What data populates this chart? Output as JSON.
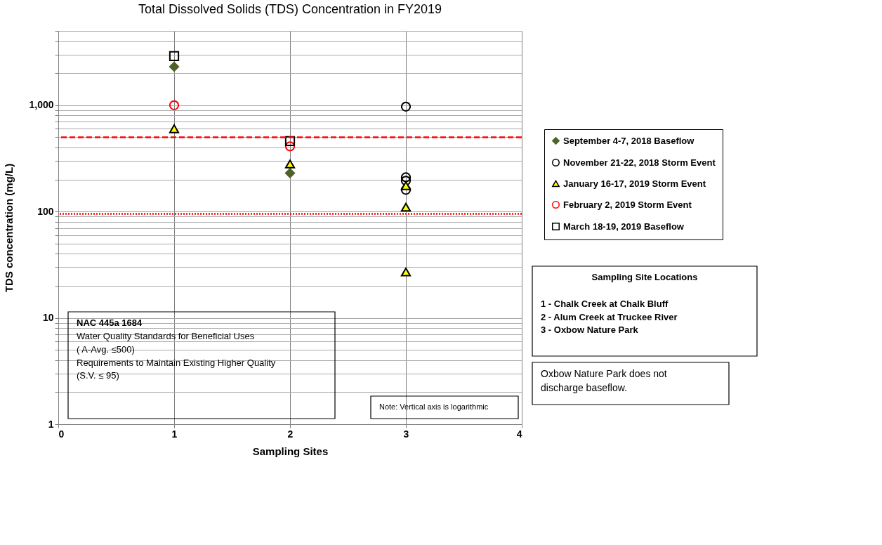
{
  "chart_data": {
    "type": "scatter",
    "title": "Total Dissolved Solids (TDS) Concentration in FY2019",
    "xlabel": "Sampling Sites",
    "ylabel": "TDS concentration (mg/L)",
    "log": "y",
    "xlim": [
      0,
      4
    ],
    "xticks": [
      0,
      1,
      2,
      3,
      4
    ],
    "ylim": [
      1,
      5000
    ],
    "yticks": [
      1,
      {
        "value": 2,
        "label": null
      },
      {
        "value": 3,
        "label": null
      },
      {
        "value": 4,
        "label": null
      },
      {
        "value": 5,
        "label": null
      },
      {
        "value": 6,
        "label": null
      },
      {
        "value": 7,
        "label": null
      },
      {
        "value": 8,
        "label": null
      },
      {
        "value": 9,
        "label": null
      },
      10,
      {
        "value": 20,
        "label": null
      },
      {
        "value": 30,
        "label": null
      },
      {
        "value": 40,
        "label": null
      },
      {
        "value": 50,
        "label": null
      },
      {
        "value": 60,
        "label": null
      },
      {
        "value": 70,
        "label": null
      },
      {
        "value": 80,
        "label": null
      },
      {
        "value": 90,
        "label": null
      },
      100,
      {
        "value": 200,
        "label": null
      },
      {
        "value": 300,
        "label": null
      },
      {
        "value": 400,
        "label": null
      },
      {
        "value": 500,
        "label": null
      },
      {
        "value": 600,
        "label": null
      },
      {
        "value": 700,
        "label": null
      },
      {
        "value": 800,
        "label": null
      },
      {
        "value": 900,
        "label": null
      },
      {
        "value": 1000,
        "label": "1,000"
      },
      {
        "value": 2000,
        "label": null
      },
      {
        "value": 3000,
        "label": null
      },
      {
        "value": 4000,
        "label": null
      },
      {
        "value": 5000,
        "label": null
      }
    ],
    "grid": true,
    "legend": "right",
    "series": [
      {
        "name": "September 4-7, 2018 Baseflow",
        "color": "#4f6228",
        "marker": "diamond",
        "x": [
          1,
          2
        ],
        "values": [
          2300,
          230
        ]
      },
      {
        "name": "November 21-22, 2018 Storm Event",
        "color": "#000000",
        "marker": "circle",
        "x": [
          3,
          3,
          3,
          3
        ],
        "values": [
          970,
          210,
          195,
          160
        ]
      },
      {
        "name": "January 16-17, 2019 Storm Event",
        "color": "#ffff00",
        "marker": "triangle",
        "x": [
          1,
          2,
          3,
          3,
          3
        ],
        "values": [
          600,
          280,
          175,
          110,
          27
        ]
      },
      {
        "name": "February 2, 2019 Storm Event",
        "color": "#ff0000",
        "marker": "circle",
        "x": [
          1,
          2
        ],
        "values": [
          1000,
          410
        ]
      },
      {
        "name": "March 18-19, 2019 Baseflow",
        "color": "#000000",
        "marker": "square",
        "x": [
          1,
          2
        ],
        "values": [
          2900,
          460
        ]
      }
    ],
    "ref_lines": [
      {
        "axis": "y",
        "value": 500,
        "color": "#ff0000",
        "line_style": "dashed"
      },
      {
        "axis": "y",
        "value": 95,
        "color": "#ff0000",
        "line_style": "dotted"
      }
    ],
    "annotations": [
      "NAC 445a 1684\nWater Quality Standards for Beneficial Uses\n( A-Avg. ≤500)\nRequirements to Maintain Existing Higher Quality\n(S.V. ≤ 95)",
      "Note: Vertical axis is logarithmic",
      "Sampling Site Locations\n\n1 - Chalk Creek at Chalk Bluff\n2 - Alum Creek at Truckee River\n3 - Oxbow Nature Park",
      "Oxbow Nature Park does not\ndischarge baseflow."
    ]
  }
}
